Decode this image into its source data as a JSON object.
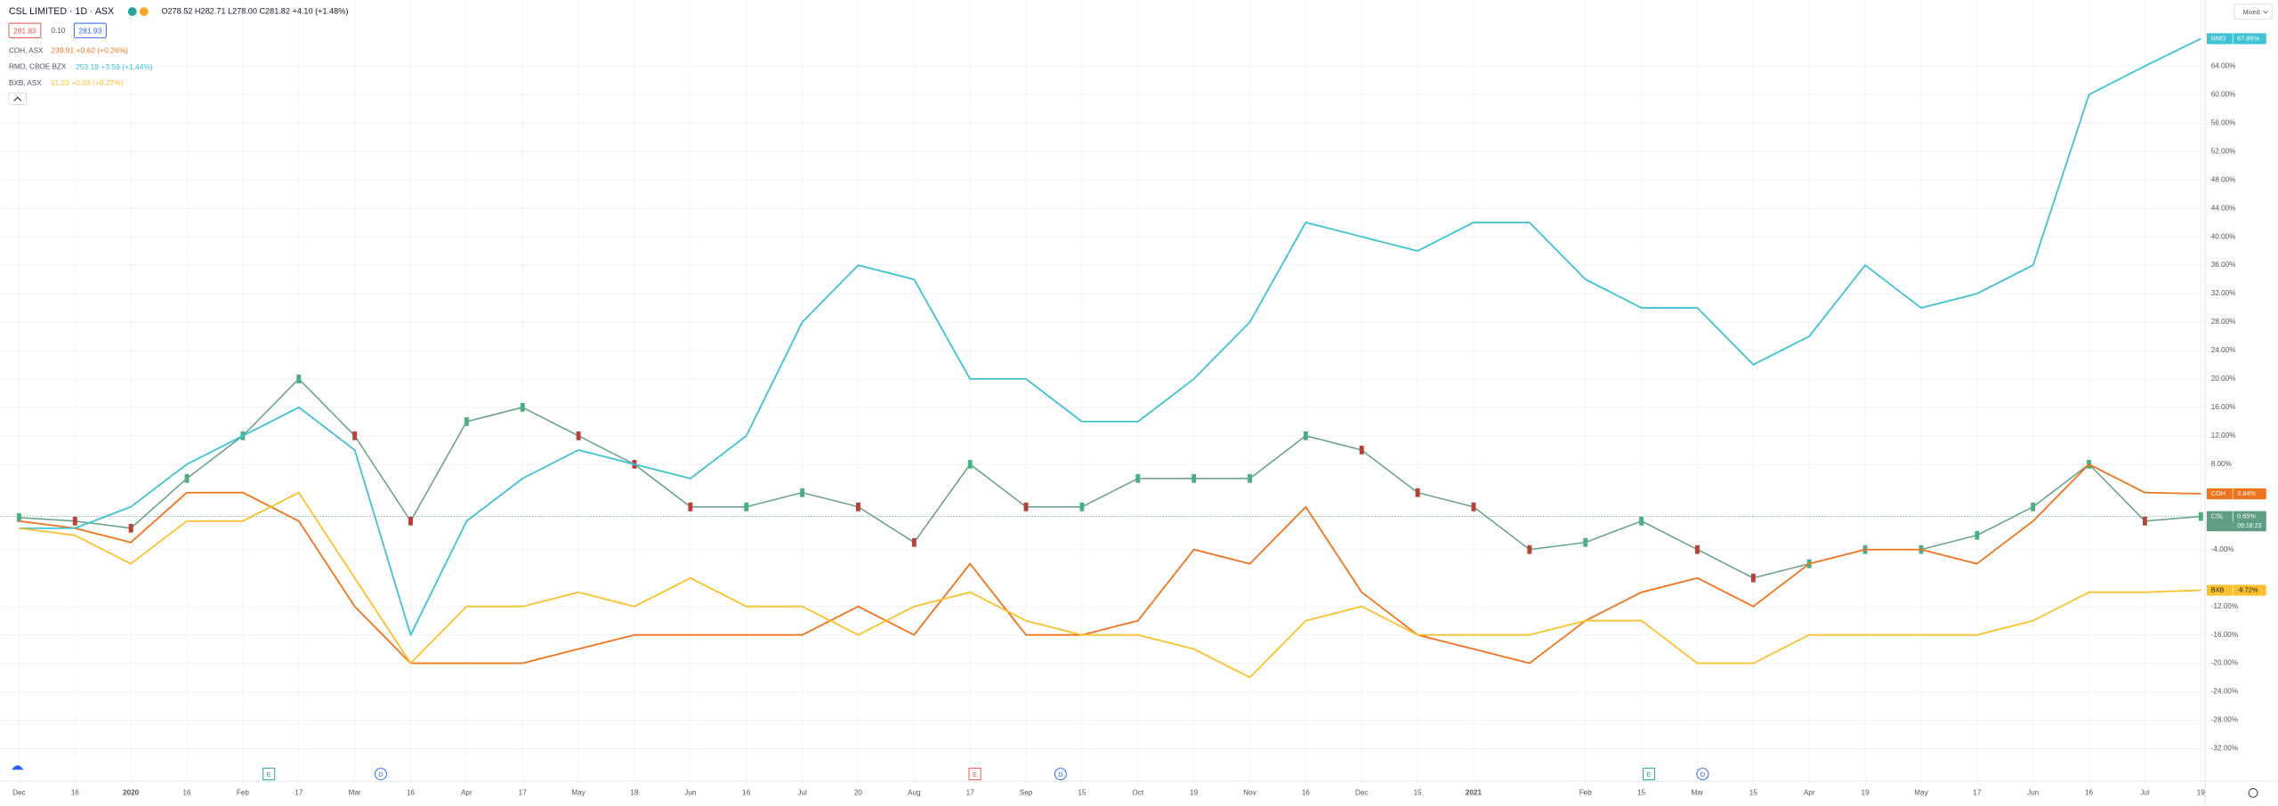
{
  "chart_data": {
    "type": "line",
    "title": "CSL LIMITED · 1D · ASX",
    "ohlc": "O278.52 H282.71 L278.00 C281.82 +4.10 (+1.48%)",
    "bid": "281.83",
    "spread": "0.10",
    "ask": "281.93",
    "scale_mode": "Mixed",
    "categories": [
      "Dec",
      "16",
      "2020",
      "16",
      "Feb",
      "17",
      "Mar",
      "16",
      "Apr",
      "17",
      "May",
      "18",
      "Jun",
      "16",
      "Jul",
      "20",
      "Aug",
      "17",
      "Sep",
      "15",
      "Oct",
      "19",
      "Nov",
      "16",
      "Dec",
      "15",
      "2021",
      null,
      "Feb",
      "15",
      "Mar",
      "15",
      "Apr",
      "19",
      "May",
      "17",
      "Jun",
      "16",
      "Jul",
      "19"
    ],
    "ylim": [
      -36.6,
      73.3
    ],
    "yticks": [
      {
        "value": -32,
        "label": "-32.00%"
      },
      {
        "value": -28,
        "label": "-28.00%"
      },
      {
        "value": -24,
        "label": "-24.00%"
      },
      {
        "value": -20,
        "label": "-20.00%"
      },
      {
        "value": -16,
        "label": "-16.00%"
      },
      {
        "value": -12,
        "label": "-12.00%"
      },
      {
        "value": -4,
        "label": "-4.00%"
      },
      {
        "value": 8,
        "label": "8.00%"
      },
      {
        "value": 12,
        "label": "12.00%"
      },
      {
        "value": 16,
        "label": "16.00%"
      },
      {
        "value": 20,
        "label": "20.00%"
      },
      {
        "value": 24,
        "label": "24.00%"
      },
      {
        "value": 28,
        "label": "28.00%"
      },
      {
        "value": 32,
        "label": "32.00%"
      },
      {
        "value": 36,
        "label": "36.00%"
      },
      {
        "value": 40,
        "label": "40.00%"
      },
      {
        "value": 44,
        "label": "44.00%"
      },
      {
        "value": 48,
        "label": "48.00%"
      },
      {
        "value": 52,
        "label": "52.00%"
      },
      {
        "value": 56,
        "label": "56.00%"
      },
      {
        "value": 60,
        "label": "60.00%"
      },
      {
        "value": 64,
        "label": "64.00%"
      }
    ],
    "grid": true,
    "series": [
      {
        "name": "CSL, ASX",
        "tag": "CSL",
        "color": "#5f9e84",
        "last_label": "0.65%",
        "countdown": "09:18:23",
        "values": [
          0.5,
          0,
          -1,
          6,
          12,
          20,
          12,
          0,
          14,
          16,
          12,
          8,
          2,
          2,
          4,
          2,
          -3,
          8,
          2,
          2,
          6,
          6,
          6,
          12,
          10,
          4,
          2,
          -4,
          -3,
          0,
          -4,
          -8,
          -6,
          -4,
          -4,
          -2,
          2,
          8,
          0,
          0.65
        ]
      },
      {
        "name": "COH, ASX",
        "tag": "COH",
        "color": "#f0731c",
        "quote": "239.91 +0.62 (+0.26%)",
        "last_label": "3.84%",
        "values": [
          0,
          -1,
          -3,
          4,
          4,
          0,
          -12,
          -20,
          -20,
          -20,
          -18,
          -16,
          -16,
          -16,
          -16,
          -12,
          -16,
          -6,
          -16,
          -16,
          -14,
          -4,
          -6,
          2,
          -10,
          -16,
          -18,
          -20,
          -14,
          -10,
          -8,
          -12,
          -6,
          -4,
          -4,
          -6,
          0,
          8,
          4,
          3.84
        ]
      },
      {
        "name": "RMD, CBOE BZX",
        "tag": "RMD",
        "color": "#3ec1d3",
        "quote": "253.19 +3.59 (+1.44%)",
        "last_label": "67.86%",
        "values": [
          -1,
          -1,
          2,
          8,
          12,
          16,
          10,
          -16,
          0,
          6,
          10,
          8,
          6,
          12,
          28,
          36,
          34,
          20,
          20,
          14,
          14,
          20,
          28,
          42,
          40,
          38,
          42,
          42,
          34,
          30,
          30,
          22,
          26,
          36,
          30,
          32,
          36,
          60,
          64,
          67.86
        ]
      },
      {
        "name": "BXB, ASX",
        "tag": "BXB",
        "color": "#fbc02d",
        "quote": "11.33 +0.03 (+0.27%)",
        "last_label": "-9.72%",
        "values": [
          -1,
          -2,
          -6,
          0,
          0,
          4,
          -8,
          -20,
          -12,
          -12,
          -10,
          -12,
          -8,
          -12,
          -12,
          -16,
          -12,
          -10,
          -14,
          -16,
          -16,
          -18,
          -22,
          -14,
          -12,
          -16,
          -16,
          -16,
          -14,
          -14,
          -20,
          -20,
          -16,
          -16,
          -16,
          -16,
          -14,
          -10,
          -10,
          -9.72
        ]
      }
    ],
    "events": [
      "E",
      "D",
      "E",
      "D",
      "E",
      "D"
    ]
  }
}
